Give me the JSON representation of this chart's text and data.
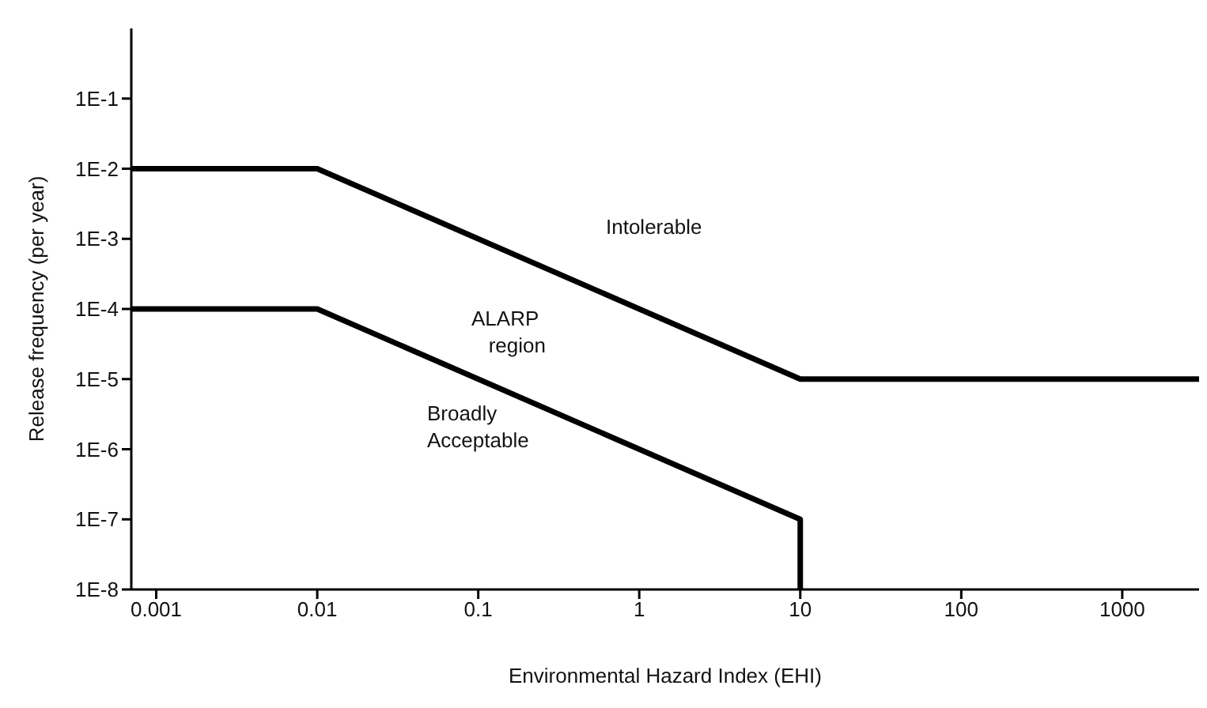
{
  "chart_data": {
    "type": "line",
    "xlabel": "Environmental Hazard Index (EHI)",
    "ylabel": "Release frequency (per year)",
    "log": "xy",
    "xlim": [
      0.0007,
      3000
    ],
    "ylim": [
      1e-08,
      1
    ],
    "xticks": [
      0.001,
      0.01,
      0.1,
      1,
      10,
      100,
      1000
    ],
    "yticks": [
      {
        "value": 0.1,
        "label": "1E-1"
      },
      {
        "value": 0.01,
        "label": "1E-2"
      },
      {
        "value": 0.001,
        "label": "1E-3"
      },
      {
        "value": 0.0001,
        "label": "1E-4"
      },
      {
        "value": 1e-05,
        "label": "1E-5"
      },
      {
        "value": 1e-06,
        "label": "1E-6"
      },
      {
        "value": 1e-07,
        "label": "1E-7"
      },
      {
        "value": 1e-08,
        "label": "1E-8"
      }
    ],
    "series": [
      {
        "color": "#000000",
        "x": [
          0.0007,
          0.01,
          10,
          3000
        ],
        "values": [
          0.01,
          0.01,
          1e-05,
          1e-05
        ]
      },
      {
        "color": "#000000",
        "x": [
          0.0007,
          0.01,
          10,
          10
        ],
        "values": [
          0.0001,
          0.0001,
          1e-07,
          1e-08
        ]
      }
    ],
    "annotations": [
      "Intolerable",
      "ALARP\n   region",
      "Broadly\nAcceptable"
    ],
    "grid": false,
    "marker": "none",
    "line_style": "solid"
  }
}
